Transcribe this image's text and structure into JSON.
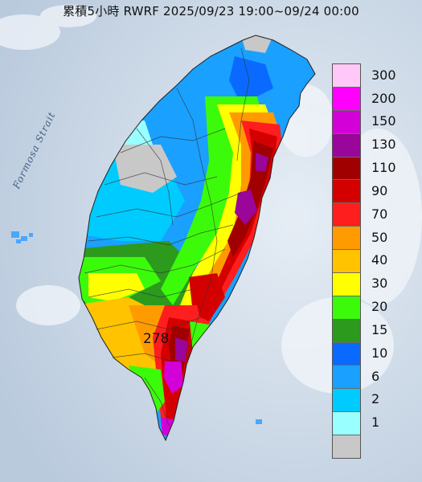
{
  "title": "累積5小時 RWRF 2025/09/23 19:00~09/24 00:00",
  "strait_label": "Formosa Strait",
  "max_value_label": "278",
  "legend": {
    "colors": [
      "#ffc8f8",
      "#ff00ff",
      "#d400d8",
      "#9a059a",
      "#a10000",
      "#d40000",
      "#ff1e1e",
      "#ff9b00",
      "#ffc300",
      "#ffff00",
      "#3cfb0a",
      "#2c9a1d",
      "#0a6aff",
      "#1aa0ff",
      "#00cbff",
      "#99ffff",
      "#c8c8c8"
    ],
    "labels": [
      "300",
      "200",
      "150",
      "130",
      "110",
      "90",
      "70",
      "50",
      "40",
      "30",
      "20",
      "15",
      "10",
      "6",
      "2",
      "1"
    ]
  }
}
